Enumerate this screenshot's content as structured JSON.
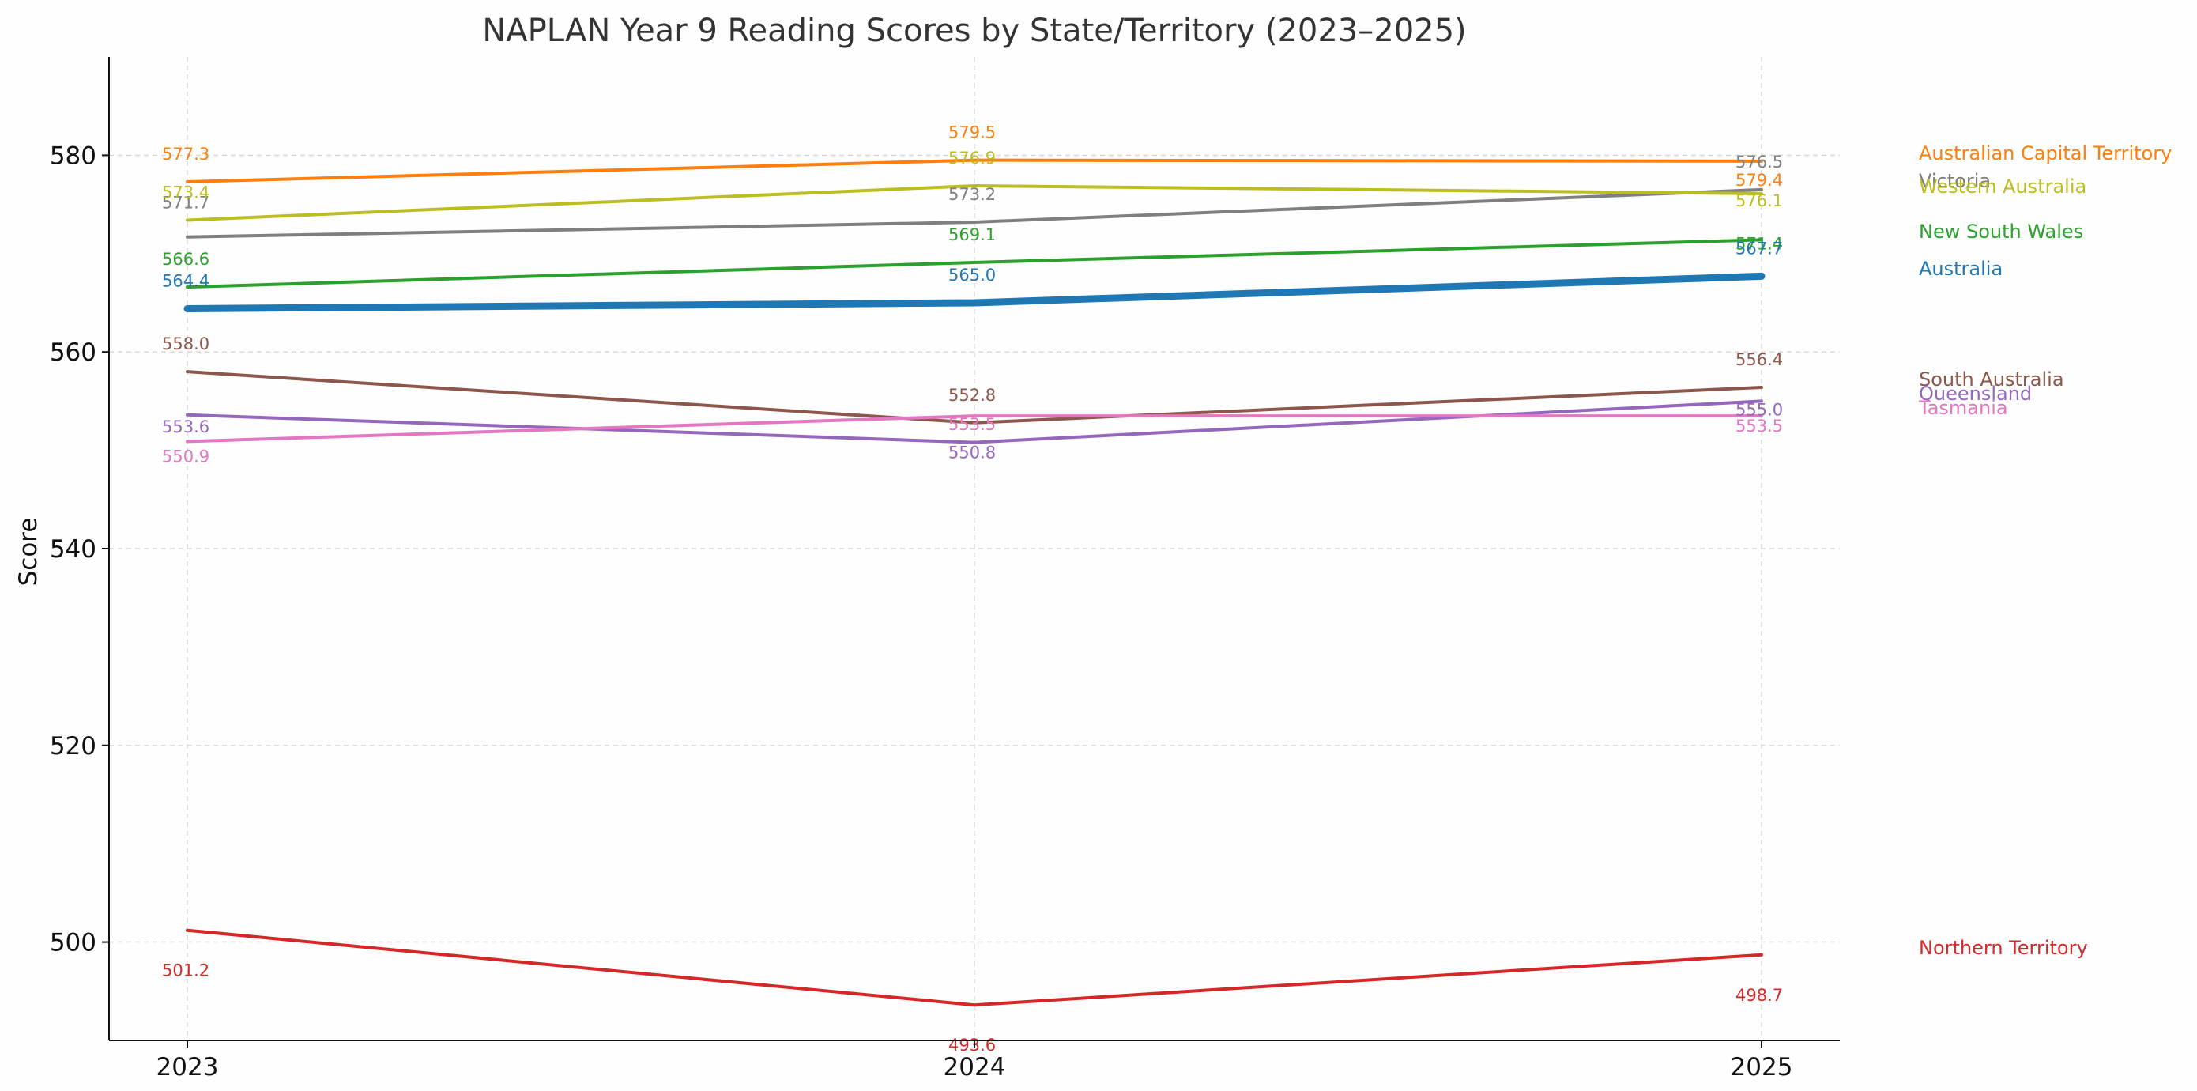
{
  "chart_data": {
    "type": "line",
    "title": "NAPLAN Year 9 Reading Scores by State/Territory (2023–2025)",
    "xlabel": "",
    "ylabel": "Score",
    "x": [
      "2023",
      "2024",
      "2025"
    ],
    "ylim": [
      490,
      590
    ],
    "yticks": [
      500,
      520,
      540,
      560,
      580
    ],
    "grid": true,
    "legend": "right-end labels",
    "series": [
      {
        "name": "Australian Capital Territory",
        "color": "#ff7f0e",
        "values": [
          577.3,
          579.5,
          579.4
        ],
        "labels": [
          "577.3",
          "579.5",
          "579.4"
        ]
      },
      {
        "name": "Victoria",
        "color": "#7f7f7f",
        "values": [
          571.7,
          573.2,
          576.5
        ],
        "labels": [
          "571.7",
          "573.2",
          "576.5"
        ]
      },
      {
        "name": "Western Australia",
        "color": "#bcbd22",
        "values": [
          573.4,
          576.9,
          576.1
        ],
        "labels": [
          "573.4",
          "576.9",
          "576.1"
        ]
      },
      {
        "name": "New South Wales",
        "color": "#2ca02c",
        "values": [
          566.6,
          569.1,
          571.4
        ],
        "labels": [
          "566.6",
          "569.1",
          "571.4"
        ]
      },
      {
        "name": "Australia",
        "color": "#1f77b4",
        "values": [
          564.4,
          565.0,
          567.7
        ],
        "labels": [
          "564.4",
          "565.0",
          "567.7"
        ],
        "emphasis": true
      },
      {
        "name": "South Australia",
        "color": "#8c564b",
        "values": [
          558.0,
          552.8,
          556.4
        ],
        "labels": [
          "558.0",
          "552.8",
          "556.4"
        ]
      },
      {
        "name": "Queensland",
        "color": "#9467bd",
        "values": [
          553.6,
          550.8,
          555.0
        ],
        "labels": [
          "553.6",
          "550.8",
          "555.0"
        ]
      },
      {
        "name": "Tasmania",
        "color": "#e377c2",
        "values": [
          550.9,
          553.5,
          553.5
        ],
        "labels": [
          "550.9",
          "553.5",
          "553.5"
        ]
      },
      {
        "name": "Northern Territory",
        "color": "#d62728",
        "values": [
          501.2,
          493.6,
          498.7
        ],
        "labels": [
          "501.2",
          "493.6",
          "498.7"
        ]
      }
    ]
  }
}
